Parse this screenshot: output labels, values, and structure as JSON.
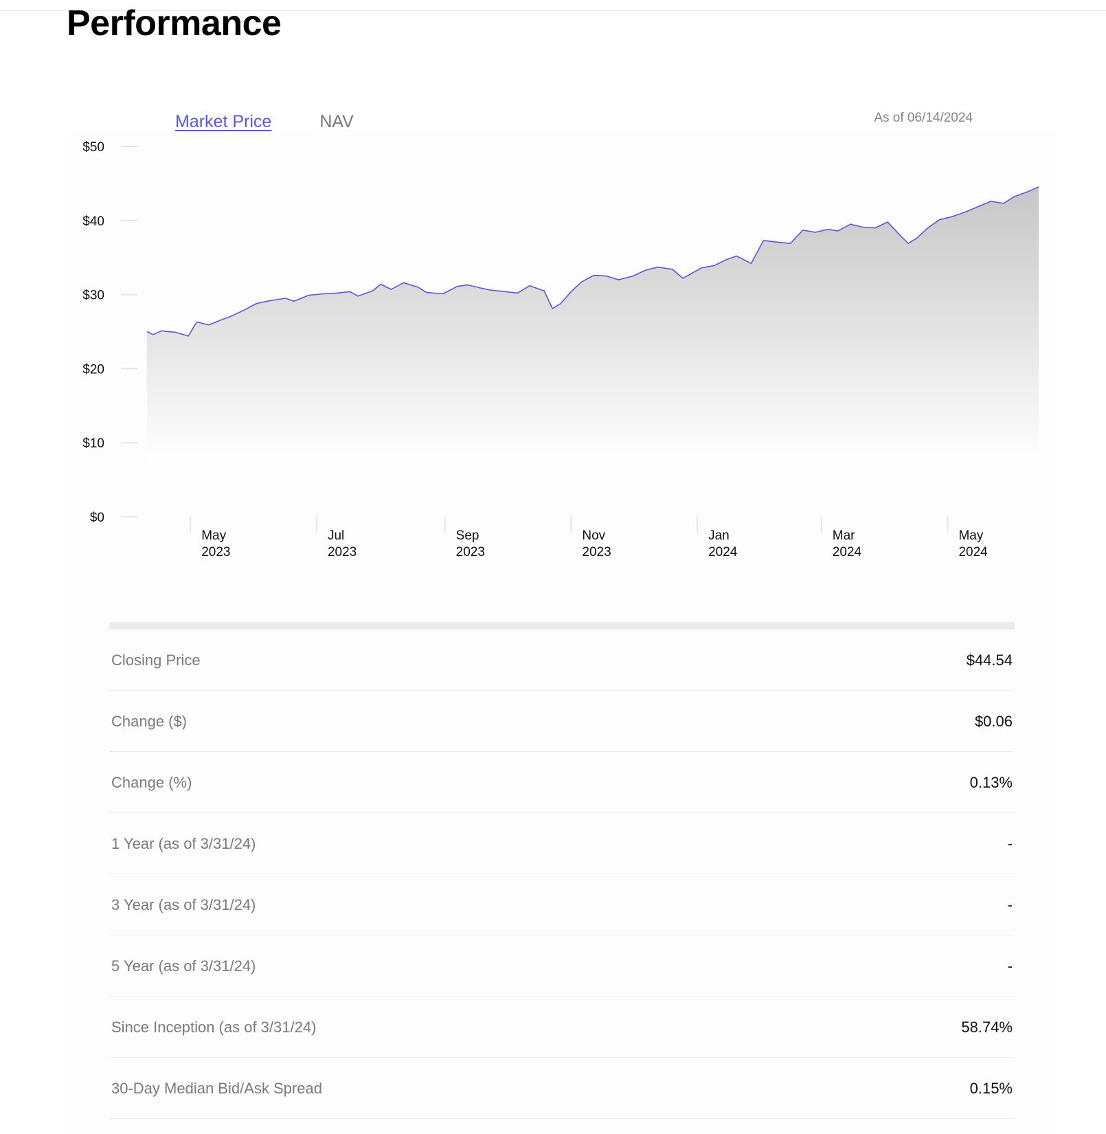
{
  "page": {
    "title": "Performance"
  },
  "tabs": [
    {
      "label": "Market Price",
      "active": true
    },
    {
      "label": "NAV",
      "active": false
    }
  ],
  "as_of": "As of 06/14/2024",
  "colors": {
    "accent": "#5a55e6",
    "line": "#5a55e6",
    "fill_top": "#c8c8c8"
  },
  "chart_data": {
    "type": "area",
    "y_ticks": [
      "$50",
      "$40",
      "$30",
      "$20",
      "$10",
      "$0"
    ],
    "y_tick_values": [
      50,
      40,
      30,
      20,
      10,
      0
    ],
    "ylim": [
      0,
      50
    ],
    "x_ticks": [
      {
        "month": "May",
        "year": "2023"
      },
      {
        "month": "Jul",
        "year": "2023"
      },
      {
        "month": "Sep",
        "year": "2023"
      },
      {
        "month": "Nov",
        "year": "2023"
      },
      {
        "month": "Jan",
        "year": "2024"
      },
      {
        "month": "Mar",
        "year": "2024"
      },
      {
        "month": "May",
        "year": "2024"
      }
    ],
    "x_tick_dates": [
      "2023-05-01",
      "2023-07-01",
      "2023-09-01",
      "2023-11-01",
      "2024-01-01",
      "2024-03-01",
      "2024-05-01"
    ],
    "xlim": [
      "2023-04-10",
      "2024-06-14"
    ],
    "series": [
      {
        "x": [
          "2023-04-10",
          "2023-04-13",
          "2023-04-17",
          "2023-04-24",
          "2023-04-30",
          "2023-05-04",
          "2023-05-10",
          "2023-05-16",
          "2023-05-20",
          "2023-05-27",
          "2023-06-02",
          "2023-06-09",
          "2023-06-16",
          "2023-06-20",
          "2023-06-27",
          "2023-07-04",
          "2023-07-11",
          "2023-07-17",
          "2023-07-21",
          "2023-07-28",
          "2023-08-01",
          "2023-08-06",
          "2023-08-12",
          "2023-08-19",
          "2023-08-23",
          "2023-08-31",
          "2023-09-07",
          "2023-09-12",
          "2023-09-18",
          "2023-09-23",
          "2023-09-30",
          "2023-10-06",
          "2023-10-12",
          "2023-10-19",
          "2023-10-23",
          "2023-10-27",
          "2023-11-01",
          "2023-11-06",
          "2023-11-12",
          "2023-11-18",
          "2023-11-24",
          "2023-12-01",
          "2023-12-07",
          "2023-12-13",
          "2023-12-20",
          "2023-12-25",
          "2024-01-03",
          "2024-01-09",
          "2024-01-15",
          "2024-01-20",
          "2024-01-27",
          "2024-02-02",
          "2024-02-08",
          "2024-02-15",
          "2024-02-21",
          "2024-02-27",
          "2024-03-04",
          "2024-03-09",
          "2024-03-15",
          "2024-03-21",
          "2024-03-27",
          "2024-04-02",
          "2024-04-08",
          "2024-04-12",
          "2024-04-16",
          "2024-04-21",
          "2024-04-27",
          "2024-05-03",
          "2024-05-10",
          "2024-05-16",
          "2024-05-22",
          "2024-05-28",
          "2024-06-02",
          "2024-06-08",
          "2024-06-14"
        ],
        "values": [
          25.0,
          24.6,
          25.1,
          24.9,
          24.4,
          26.3,
          25.9,
          26.6,
          27.0,
          27.9,
          28.8,
          29.2,
          29.5,
          29.1,
          29.9,
          30.1,
          30.2,
          30.4,
          29.8,
          30.5,
          31.4,
          30.7,
          31.6,
          31.0,
          30.3,
          30.1,
          31.1,
          31.3,
          30.9,
          30.6,
          30.4,
          30.2,
          31.2,
          30.5,
          28.1,
          28.8,
          30.4,
          31.7,
          32.6,
          32.5,
          32.0,
          32.5,
          33.3,
          33.7,
          33.4,
          32.2,
          33.6,
          33.9,
          34.7,
          35.2,
          34.2,
          37.3,
          37.1,
          36.9,
          38.7,
          38.4,
          38.8,
          38.6,
          39.5,
          39.1,
          39.0,
          39.8,
          38.0,
          36.9,
          37.6,
          38.9,
          40.1,
          40.5,
          41.2,
          41.9,
          42.6,
          42.3,
          43.2,
          43.8,
          44.54
        ]
      }
    ]
  },
  "stats": [
    {
      "label": "Closing Price",
      "value": "$44.54"
    },
    {
      "label": "Change ($)",
      "value": "$0.06"
    },
    {
      "label": "Change (%)",
      "value": "0.13%"
    },
    {
      "label": "1 Year (as of 3/31/24)",
      "value": "-"
    },
    {
      "label": "3 Year (as of 3/31/24)",
      "value": "-"
    },
    {
      "label": "5 Year (as of 3/31/24)",
      "value": "-"
    },
    {
      "label": "Since Inception (as of 3/31/24)",
      "value": "58.74%"
    },
    {
      "label": "30-Day Median Bid/Ask Spread",
      "value": "0.15%"
    }
  ]
}
